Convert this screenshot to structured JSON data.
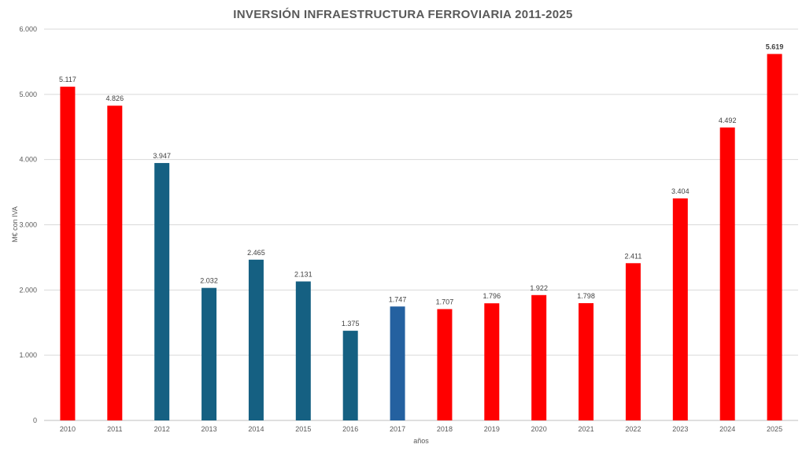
{
  "chart_data": {
    "type": "bar",
    "title": "INVERSIÓN INFRAESTRUCTURA FERROVIARIA 2011-2025",
    "xlabel": "años",
    "ylabel": "M€ con IVA",
    "ylim": [
      0,
      6000
    ],
    "yticks": [
      0,
      1000,
      2000,
      3000,
      4000,
      5000,
      6000
    ],
    "ytick_labels": [
      "0",
      "1.000",
      "2.000",
      "3.000",
      "4.000",
      "5.000",
      "6.000"
    ],
    "grid": true,
    "legend": "none",
    "categories": [
      "2010",
      "2011",
      "2012",
      "2013",
      "2014",
      "2015",
      "2016",
      "2017",
      "2018",
      "2019",
      "2020",
      "2021",
      "2022",
      "2023",
      "2024",
      "2025"
    ],
    "values": [
      5117,
      4826,
      3947,
      2032,
      2465,
      2131,
      1375,
      1747,
      1707,
      1796,
      1922,
      1798,
      2411,
      3404,
      4492,
      5619
    ],
    "value_labels": [
      "5.117",
      "4.826",
      "3.947",
      "2.032",
      "2.465",
      "2.131",
      "1.375",
      "1.747",
      "1.707",
      "1.796",
      "1.922",
      "1.798",
      "2.411",
      "3.404",
      "4.492",
      "5.619"
    ],
    "bar_colors": [
      "#ff0000",
      "#ff0000",
      "#156082",
      "#156082",
      "#156082",
      "#156082",
      "#156082",
      "#2461a0",
      "#ff0000",
      "#ff0000",
      "#ff0000",
      "#ff0000",
      "#ff0000",
      "#ff0000",
      "#ff0000",
      "#ff0000"
    ],
    "bold_label_indices": [
      15
    ]
  }
}
